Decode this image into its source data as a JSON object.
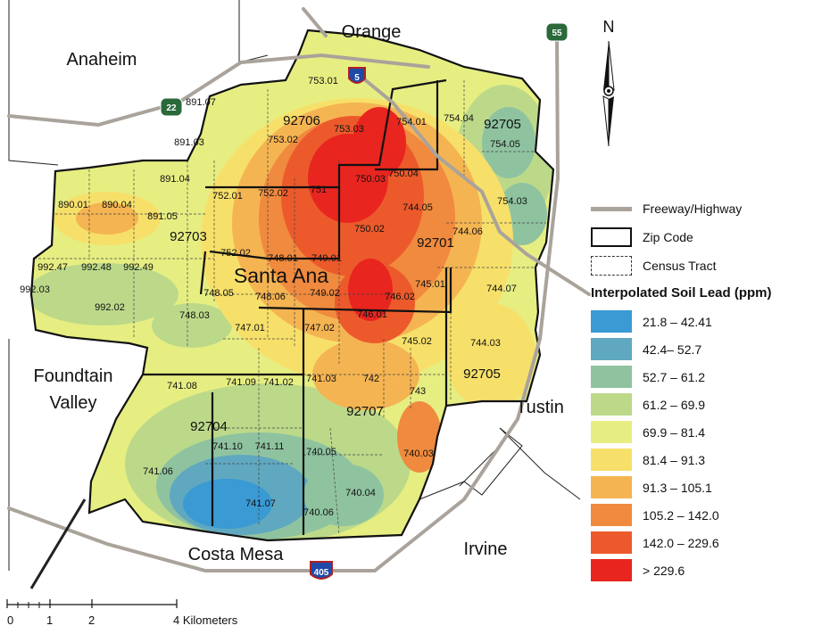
{
  "cities": {
    "orange": "Orange",
    "anaheim": "Anaheim",
    "foundtain1": "Foundtain",
    "foundtain2": "Valley",
    "costa_mesa": "Costa Mesa",
    "irvine": "Irvine",
    "tustin": "Tustin",
    "santa_ana": "Santa Ana"
  },
  "highways": {
    "i5": "5",
    "i405": "405",
    "sr22": "22",
    "sr55": "55"
  },
  "zip_codes": {
    "z92706": "92706",
    "z92705a": "92705",
    "z92703": "92703",
    "z92701": "92701",
    "z92705b": "92705",
    "z92704": "92704",
    "z92707": "92707"
  },
  "tracts": [
    "753.01",
    "891.07",
    "891.03",
    "753.02",
    "753.03",
    "754.01",
    "754.04",
    "754.05",
    "891.04",
    "752.01",
    "752.02",
    "751",
    "750.03",
    "750.04",
    "754.03",
    "890.01",
    "890.04",
    "891.05",
    "744.05",
    "750.02",
    "744.06",
    "992.47",
    "992.48",
    "992.49",
    "752.02",
    "748.01",
    "749.01",
    "992.03",
    "748.05",
    "748.06",
    "749.02",
    "746.02",
    "745.01",
    "744.07",
    "992.02",
    "748.03",
    "746.01",
    "747.01",
    "747.02",
    "745.02",
    "744.03",
    "741.08",
    "741.09",
    "741.02",
    "741.03",
    "742",
    "743",
    "741.10",
    "741.11",
    "740.05",
    "740.03",
    "741.06",
    "741.07",
    "740.04",
    "740.06"
  ],
  "north_label": "N",
  "legend": {
    "freeway": "Freeway/Highway",
    "zip": "Zip Code",
    "tract": "Census Tract",
    "title": "Interpolated Soil Lead (ppm)",
    "classes": [
      {
        "label": "21.8 – 42.41",
        "color": "#3a9ad3"
      },
      {
        "label": "42.4– 52.7",
        "color": "#5fa8c0"
      },
      {
        "label": "52.7 – 61.2",
        "color": "#8fc3a0"
      },
      {
        "label": "61.2 – 69.9",
        "color": "#bcd98a"
      },
      {
        "label": "69.9 – 81.4",
        "color": "#e6ee82"
      },
      {
        "label": "81.4 – 91.3",
        "color": "#f7e06a"
      },
      {
        "label": "91.3 – 105.1",
        "color": "#f5b452"
      },
      {
        "label": "105.2 – 142.0",
        "color": "#f08a3e"
      },
      {
        "label": "142.0 – 229.6",
        "color": "#ec5a2c"
      },
      {
        "label": "> 229.6",
        "color": "#e8251f"
      }
    ]
  },
  "scale": {
    "t0": "0",
    "t1": "1",
    "t2": "2",
    "t4": "4 Kilometers"
  },
  "colors": {
    "freeway": "#aaa39b",
    "zip_line": "#111111"
  }
}
